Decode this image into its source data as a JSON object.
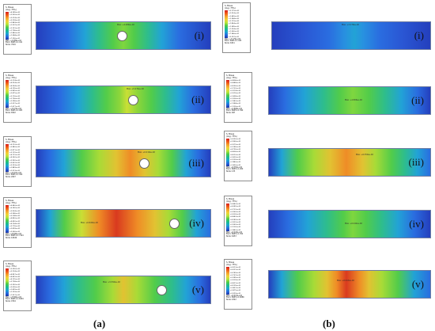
{
  "legend_template": {
    "title_lines": [
      "S, Mises",
      "(Avg: 75%)"
    ],
    "footer_max": "Max: ",
    "footer_elem": "Elem: PART-1-1.",
    "footer_node": "Node: "
  },
  "panels": {
    "a": {
      "caption": "(a)",
      "rows": [
        {
          "roman": "(i)",
          "legend_values": [
            "+4.289e+02",
            "+3.930e+02",
            "+3.574e+02",
            "+3.218e+02",
            "+2.863e+02",
            "+2.507e+02",
            "+2.151e+02",
            "+1.796e+02",
            "+1.440e+02",
            "+1.084e+02",
            "+7.290e+01"
          ],
          "legend_footer": [
            "Max: +4.289e+02",
            "Elem: PART-1-1.411",
            "Node: 7016"
          ],
          "max_label": "Max: +4.289e+02"
        },
        {
          "roman": "(ii)",
          "legend_values": [
            "+5.274e+02",
            "+4.914e+02",
            "+4.554e+02",
            "+4.195e+02",
            "+3.835e+02",
            "+3.475e+02",
            "+3.116e+02",
            "+2.756e+02",
            "+2.396e+02",
            "+2.037e+02",
            "+1.677e+02"
          ],
          "legend_footer": [
            "Max: +5.274e+02",
            "Elem: PART-1-1.403",
            "Node: 6592"
          ],
          "max_label": "Max: +5.274e+02"
        },
        {
          "roman": "(iii)",
          "legend_values": [
            "+6.210e+02",
            "+5.840e+02",
            "+5.471e+02",
            "+5.101e+02",
            "+4.731e+02",
            "+4.362e+02",
            "+3.992e+02",
            "+3.622e+02",
            "+3.253e+02",
            "+2.883e+02",
            "+2.513e+02"
          ],
          "legend_footer": [
            "Max: +6.210e+02",
            "Elem: PART-1-1.300",
            "Node: 2097"
          ],
          "max_label": "Max: +6.210e+02"
        },
        {
          "roman": "(iv)",
          "legend_values": [
            "+6.640e+02",
            "+6.282e+02",
            "+5.924e+02",
            "+5.566e+02",
            "+5.208e+02",
            "+4.850e+02",
            "+4.492e+02",
            "+4.134e+02",
            "+3.776e+02",
            "+3.418e+02",
            "+3.060e+02"
          ],
          "legend_footer": [
            "Max: +6.640e+02",
            "Elem: PART-1-1.7124",
            "Node: 10649"
          ],
          "max_label": "Max: +6.640e+02"
        },
        {
          "roman": "(v)",
          "legend_values": [
            "+5.590e+02",
            "+5.224e+02",
            "+4.857e+02",
            "+4.491e+02",
            "+4.125e+02",
            "+3.758e+02",
            "+3.392e+02",
            "+3.026e+02",
            "+2.659e+02",
            "+2.293e+02",
            "+1.927e+02"
          ],
          "legend_footer": [
            "Max: +5.590e+02",
            "Elem: PART-1-1.6294",
            "Node: 9794"
          ],
          "max_label": "Max: +5.590e+02"
        }
      ]
    },
    "b": {
      "caption": "(b)",
      "rows": [
        {
          "roman": "(i)",
          "legend_values": [
            "+3.179e+02",
            "+2.914e+02",
            "+2.649e+02",
            "+2.384e+02",
            "+2.119e+02",
            "+1.854e+02",
            "+1.589e+02",
            "+1.324e+02",
            "+1.060e+02",
            "+7.946e+01",
            "+5.297e+01"
          ],
          "legend_footer": [
            "Max: +3.179e+02",
            "Elem: PART-1-1.425",
            "Node: 6321"
          ],
          "max_label": "Max: +3.179e+02"
        },
        {
          "roman": "(ii)",
          "legend_values": [
            "+4.806e+02",
            "+4.448e+02",
            "+4.090e+02",
            "+3.732e+02",
            "+3.374e+02",
            "+3.016e+02",
            "+2.658e+02",
            "+2.300e+02",
            "+1.942e+02",
            "+1.584e+02",
            "+1.226e+02"
          ],
          "legend_footer": [
            "Max: +4.806e+02",
            "Elem: PART-1-1.390",
            "Node: 967"
          ],
          "max_label": "Max: +4.806e+02"
        },
        {
          "roman": "(iii)",
          "legend_values": [
            "+6.350e+02",
            "+5.960e+02",
            "+5.570e+02",
            "+5.180e+02",
            "+4.790e+02",
            "+4.400e+02",
            "+4.010e+02",
            "+3.620e+02",
            "+3.230e+02",
            "+2.840e+02",
            "+2.450e+02"
          ],
          "legend_footer": [
            "Max: +6.350e+02",
            "Elem: PART-1-1.260",
            "Node: 133"
          ],
          "max_label": "Max: +6.350e+02"
        },
        {
          "roman": "(iv)",
          "legend_values": [
            "+6.442e+02",
            "+6.082e+02",
            "+5.722e+02",
            "+5.362e+02",
            "+5.002e+02",
            "+4.642e+02",
            "+4.282e+02",
            "+3.922e+02",
            "+3.562e+02",
            "+3.202e+02",
            "+2.842e+02"
          ],
          "legend_footer": [
            "Max: +6.442e+02",
            "Elem: PART-1-1.352",
            "Node: 6453"
          ],
          "max_label": "Max: +6.442e+02"
        },
        {
          "roman": "(v)",
          "legend_values": [
            "+6.913e+02",
            "+6.531e+02",
            "+6.149e+02",
            "+5.767e+02",
            "+5.385e+02",
            "+5.003e+02",
            "+4.621e+02",
            "+4.239e+02",
            "+3.857e+02",
            "+3.475e+02",
            "+3.093e+02"
          ],
          "legend_footer": [
            "Max: +6.913e+02",
            "Elem: PART-1-1.6086",
            "Node: 2242"
          ],
          "max_label": "Max: +6.913e+02"
        }
      ]
    }
  }
}
